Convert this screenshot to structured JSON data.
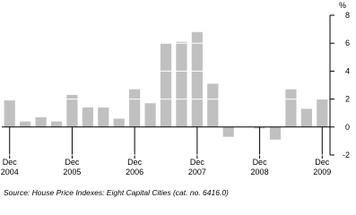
{
  "chart_data": {
    "type": "bar",
    "unit": "%",
    "source": "Source: House Price Indexes: Eight Capital Cities (cat. no. 6416.0)",
    "categories": [
      "Dec 2004",
      null,
      null,
      null,
      "Dec 2005",
      null,
      null,
      null,
      "Dec 2006",
      null,
      null,
      null,
      "Dec 2007",
      null,
      null,
      null,
      "Dec 2008",
      null,
      null,
      null,
      "Dec 2009"
    ],
    "values": [
      1.9,
      0.4,
      0.7,
      0.4,
      2.3,
      1.4,
      1.4,
      0.6,
      2.7,
      1.7,
      6.0,
      6.1,
      6.8,
      3.1,
      -0.7,
      0,
      -0.1,
      -0.9,
      2.7,
      1.3,
      2.0
    ],
    "color": "#c0c0c0",
    "ylim": [
      -2,
      8
    ],
    "yticks": [
      -2,
      0,
      2,
      4,
      6,
      8
    ],
    "grid": true
  }
}
